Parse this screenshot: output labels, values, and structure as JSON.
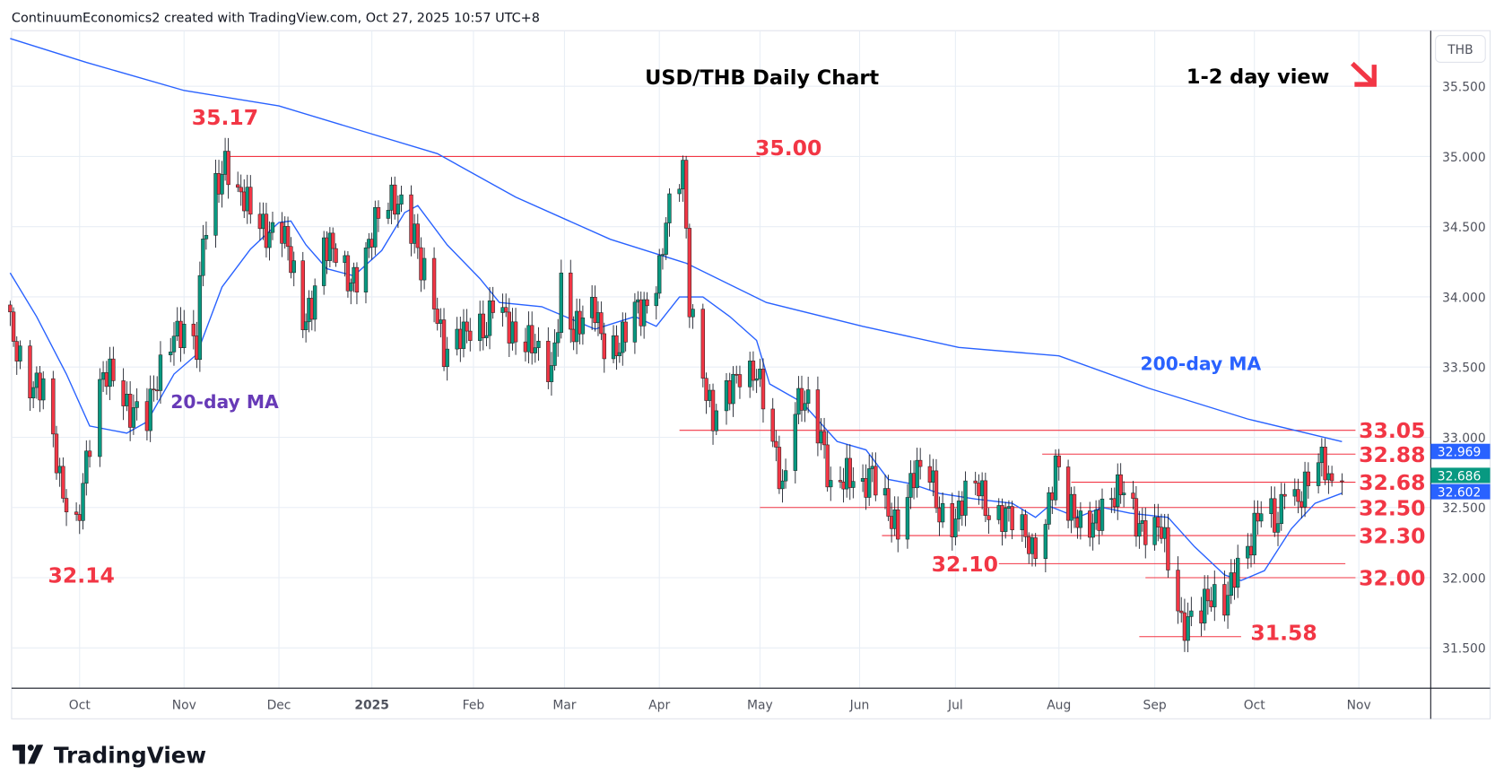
{
  "header": {
    "attribution": "ContinuumEconomics2 created with TradingView.com, Oct 27, 2025 10:57 UTC+8"
  },
  "footer": {
    "logo_text": "TradingView"
  },
  "colors": {
    "up": "#089981",
    "down": "#f23645",
    "ma": "#2962ff",
    "ma20_label": "#673ab7",
    "levels": "#f23645",
    "grid": "#e8eef5"
  },
  "chart_data": {
    "type": "candlestick",
    "title": "USD/THB Daily Chart",
    "subtitle": "1-2 day view",
    "view_icon": "arrow-down-right-icon",
    "currency": "THB",
    "ylim": [
      31.22,
      35.88
    ],
    "grid": true,
    "y_ticks": [
      "35.500",
      "35.000",
      "34.500",
      "34.000",
      "33.500",
      "33.000",
      "32.500",
      "32.000",
      "31.500"
    ],
    "x_ticks": [
      {
        "label": "Oct",
        "date": "2024-10-01"
      },
      {
        "label": "Nov",
        "date": "2024-11-01"
      },
      {
        "label": "Dec",
        "date": "2024-12-01"
      },
      {
        "label": "2025",
        "date": "2025-01-01",
        "bold": true
      },
      {
        "label": "Feb",
        "date": "2025-02-01"
      },
      {
        "label": "Mar",
        "date": "2025-03-01"
      },
      {
        "label": "Apr",
        "date": "2025-04-01"
      },
      {
        "label": "May",
        "date": "2025-05-01"
      },
      {
        "label": "Jun",
        "date": "2025-06-01"
      },
      {
        "label": "Jul",
        "date": "2025-07-01"
      },
      {
        "label": "Aug",
        "date": "2025-08-01"
      },
      {
        "label": "Sep",
        "date": "2025-09-01"
      },
      {
        "label": "Oct",
        "date": "2025-10-01"
      },
      {
        "label": "Nov",
        "date": "2025-11-01"
      }
    ],
    "price_badges": [
      {
        "label": "32.969",
        "value": 32.969,
        "color": "#2962ff"
      },
      {
        "label": "32.602",
        "value": 32.602,
        "color": "#2962ff"
      },
      {
        "label": "32.686",
        "value": 32.686,
        "color": "#089981"
      }
    ],
    "close_path": [
      [
        "2024-09-10",
        33.8
      ],
      [
        "2024-09-16",
        33.4
      ],
      [
        "2024-09-20",
        33.3
      ],
      [
        "2024-09-25",
        32.7
      ],
      [
        "2024-09-30",
        32.4
      ],
      [
        "2024-10-03",
        32.8
      ],
      [
        "2024-10-08",
        33.4
      ],
      [
        "2024-10-11",
        33.5
      ],
      [
        "2024-10-16",
        33.2
      ],
      [
        "2024-10-21",
        33.1
      ],
      [
        "2024-10-25",
        33.5
      ],
      [
        "2024-10-29",
        33.8
      ],
      [
        "2024-11-01",
        33.75
      ],
      [
        "2024-11-05",
        33.6
      ],
      [
        "2024-11-07",
        34.4
      ],
      [
        "2024-11-11",
        34.8
      ],
      [
        "2024-11-14",
        35.0
      ],
      [
        "2024-11-18",
        34.7
      ],
      [
        "2024-11-22",
        34.6
      ],
      [
        "2024-11-27",
        34.5
      ],
      [
        "2024-12-02",
        34.5
      ],
      [
        "2024-12-05",
        34.2
      ],
      [
        "2024-12-09",
        33.8
      ],
      [
        "2024-12-12",
        34.0
      ],
      [
        "2024-12-16",
        34.4
      ],
      [
        "2024-12-19",
        34.3
      ],
      [
        "2024-12-24",
        34.1
      ],
      [
        "2024-12-27",
        34.2
      ],
      [
        "2025-01-02",
        34.5
      ],
      [
        "2025-01-07",
        34.65
      ],
      [
        "2025-01-10",
        34.7
      ],
      [
        "2025-01-14",
        34.5
      ],
      [
        "2025-01-16",
        34.2
      ],
      [
        "2025-01-20",
        33.9
      ],
      [
        "2025-01-23",
        33.6
      ],
      [
        "2025-01-28",
        33.8
      ],
      [
        "2025-01-31",
        33.75
      ],
      [
        "2025-02-05",
        33.7
      ],
      [
        "2025-02-07",
        34.0
      ],
      [
        "2025-02-11",
        33.9
      ],
      [
        "2025-02-14",
        33.7
      ],
      [
        "2025-02-20",
        33.6
      ],
      [
        "2025-02-25",
        33.5
      ],
      [
        "2025-02-28",
        34.1
      ],
      [
        "2025-03-04",
        33.7
      ],
      [
        "2025-03-07",
        33.8
      ],
      [
        "2025-03-11",
        33.95
      ],
      [
        "2025-03-14",
        33.7
      ],
      [
        "2025-03-19",
        33.6
      ],
      [
        "2025-03-24",
        33.9
      ],
      [
        "2025-03-27",
        33.95
      ],
      [
        "2025-04-01",
        34.2
      ],
      [
        "2025-04-03",
        34.5
      ],
      [
        "2025-04-08",
        34.9
      ],
      [
        "2025-04-10",
        34.0
      ],
      [
        "2025-04-14",
        33.5
      ],
      [
        "2025-04-17",
        33.1
      ],
      [
        "2025-04-22",
        33.3
      ],
      [
        "2025-04-25",
        33.5
      ],
      [
        "2025-04-30",
        33.5
      ],
      [
        "2025-05-05",
        32.9
      ],
      [
        "2025-05-08",
        32.6
      ],
      [
        "2025-05-12",
        33.3
      ],
      [
        "2025-05-15",
        33.3
      ],
      [
        "2025-05-20",
        32.95
      ],
      [
        "2025-05-23",
        32.6
      ],
      [
        "2025-05-28",
        32.8
      ],
      [
        "2025-06-02",
        32.6
      ],
      [
        "2025-06-05",
        32.7
      ],
      [
        "2025-06-10",
        32.5
      ],
      [
        "2025-06-13",
        32.4
      ],
      [
        "2025-06-18",
        32.7
      ],
      [
        "2025-06-23",
        32.75
      ],
      [
        "2025-06-26",
        32.5
      ],
      [
        "2025-07-01",
        32.4
      ],
      [
        "2025-07-04",
        32.55
      ],
      [
        "2025-07-08",
        32.65
      ],
      [
        "2025-07-11",
        32.5
      ],
      [
        "2025-07-16",
        32.45
      ],
      [
        "2025-07-21",
        32.3
      ],
      [
        "2025-07-24",
        32.2
      ],
      [
        "2025-07-28",
        32.45
      ],
      [
        "2025-07-31",
        32.8
      ],
      [
        "2025-08-04",
        32.45
      ],
      [
        "2025-08-08",
        32.4
      ],
      [
        "2025-08-13",
        32.45
      ],
      [
        "2025-08-18",
        32.5
      ],
      [
        "2025-08-22",
        32.65
      ],
      [
        "2025-08-26",
        32.45
      ],
      [
        "2025-08-29",
        32.35
      ],
      [
        "2025-09-03",
        32.3
      ],
      [
        "2025-09-05",
        32.1
      ],
      [
        "2025-09-09",
        31.7
      ],
      [
        "2025-09-12",
        31.75
      ],
      [
        "2025-09-17",
        31.8
      ],
      [
        "2025-09-22",
        31.8
      ],
      [
        "2025-09-25",
        32.1
      ],
      [
        "2025-09-30",
        32.25
      ],
      [
        "2025-10-03",
        32.45
      ],
      [
        "2025-10-08",
        32.4
      ],
      [
        "2025-10-10",
        32.75
      ],
      [
        "2025-10-14",
        32.55
      ],
      [
        "2025-10-16",
        32.6
      ],
      [
        "2025-10-20",
        32.8
      ],
      [
        "2025-10-22",
        32.8
      ],
      [
        "2025-10-24",
        32.69
      ],
      [
        "2025-10-27",
        32.686
      ]
    ],
    "moving_averages": [
      {
        "name": "200-day MA",
        "points": [
          [
            "2024-09-10",
            35.84
          ],
          [
            "2024-10-03",
            35.67
          ],
          [
            "2024-11-01",
            35.47
          ],
          [
            "2024-12-01",
            35.36
          ],
          [
            "2025-01-01",
            35.16
          ],
          [
            "2025-01-21",
            35.02
          ],
          [
            "2025-02-14",
            34.71
          ],
          [
            "2025-03-16",
            34.41
          ],
          [
            "2025-04-09",
            34.24
          ],
          [
            "2025-05-03",
            33.96
          ],
          [
            "2025-06-02",
            33.79
          ],
          [
            "2025-07-02",
            33.64
          ],
          [
            "2025-08-01",
            33.58
          ],
          [
            "2025-08-30",
            33.35
          ],
          [
            "2025-09-29",
            33.13
          ],
          [
            "2025-10-27",
            32.969
          ]
        ]
      },
      {
        "name": "20-day MA",
        "points": [
          [
            "2024-09-10",
            34.17
          ],
          [
            "2024-09-18",
            33.86
          ],
          [
            "2024-09-27",
            33.45
          ],
          [
            "2024-10-04",
            33.08
          ],
          [
            "2024-10-15",
            33.03
          ],
          [
            "2024-10-21",
            33.11
          ],
          [
            "2024-10-29",
            33.45
          ],
          [
            "2024-11-05",
            33.59
          ],
          [
            "2024-11-13",
            34.07
          ],
          [
            "2024-11-22",
            34.34
          ],
          [
            "2024-12-01",
            34.53
          ],
          [
            "2024-12-05",
            34.54
          ],
          [
            "2024-12-10",
            34.37
          ],
          [
            "2024-12-17",
            34.2
          ],
          [
            "2024-12-26",
            34.15
          ],
          [
            "2025-01-04",
            34.33
          ],
          [
            "2025-01-11",
            34.6
          ],
          [
            "2025-01-15",
            34.65
          ],
          [
            "2025-01-24",
            34.37
          ],
          [
            "2025-02-03",
            34.13
          ],
          [
            "2025-02-09",
            33.96
          ],
          [
            "2025-02-22",
            33.93
          ],
          [
            "2025-03-11",
            33.77
          ],
          [
            "2025-03-24",
            33.86
          ],
          [
            "2025-03-31",
            33.79
          ],
          [
            "2025-04-07",
            34.0
          ],
          [
            "2025-04-14",
            34.0
          ],
          [
            "2025-04-22",
            33.86
          ],
          [
            "2025-04-30",
            33.69
          ],
          [
            "2025-05-04",
            33.38
          ],
          [
            "2025-05-14",
            33.25
          ],
          [
            "2025-05-25",
            32.97
          ],
          [
            "2025-06-03",
            32.91
          ],
          [
            "2025-06-10",
            32.7
          ],
          [
            "2025-06-17",
            32.67
          ],
          [
            "2025-06-26",
            32.6
          ],
          [
            "2025-07-07",
            32.56
          ],
          [
            "2025-07-18",
            32.53
          ],
          [
            "2025-07-25",
            32.43
          ],
          [
            "2025-07-29",
            32.51
          ],
          [
            "2025-08-07",
            32.43
          ],
          [
            "2025-08-15",
            32.5
          ],
          [
            "2025-08-24",
            32.46
          ],
          [
            "2025-09-05",
            32.43
          ],
          [
            "2025-09-13",
            32.22
          ],
          [
            "2025-09-22",
            32.02
          ],
          [
            "2025-09-27",
            31.98
          ],
          [
            "2025-10-04",
            32.05
          ],
          [
            "2025-10-12",
            32.35
          ],
          [
            "2025-10-19",
            32.53
          ],
          [
            "2025-10-27",
            32.602
          ]
        ]
      }
    ],
    "levels": [
      {
        "label": "35.00",
        "value": 35.0,
        "from": "2024-11-14",
        "to": "2025-05-01"
      },
      {
        "label": "33.05",
        "value": 33.05,
        "from": "2025-04-07",
        "to": "2025-10-31"
      },
      {
        "label": "32.88",
        "value": 32.88,
        "from": "2025-07-27",
        "to": "2025-10-31"
      },
      {
        "label": "32.68",
        "value": 32.68,
        "from": "2025-08-05",
        "to": "2025-10-31"
      },
      {
        "label": "32.50",
        "value": 32.5,
        "from": "2025-05-01",
        "to": "2025-10-31"
      },
      {
        "label": "32.30",
        "value": 32.3,
        "from": "2025-06-08",
        "to": "2025-10-31"
      },
      {
        "label": "32.10",
        "value": 32.1,
        "from": "2025-07-14",
        "to": "2025-10-28"
      },
      {
        "label": "32.00",
        "value": 32.0,
        "from": "2025-08-29",
        "to": "2025-10-31"
      },
      {
        "label": "31.58",
        "value": 31.58,
        "from": "2025-08-27",
        "to": "2025-09-27"
      }
    ],
    "annotations": [
      {
        "text": "35.17",
        "kind": "high"
      },
      {
        "text": "32.14",
        "kind": "low"
      },
      {
        "text": "20-day MA",
        "kind": "series-label"
      },
      {
        "text": "200-day MA",
        "kind": "series-label"
      }
    ]
  }
}
